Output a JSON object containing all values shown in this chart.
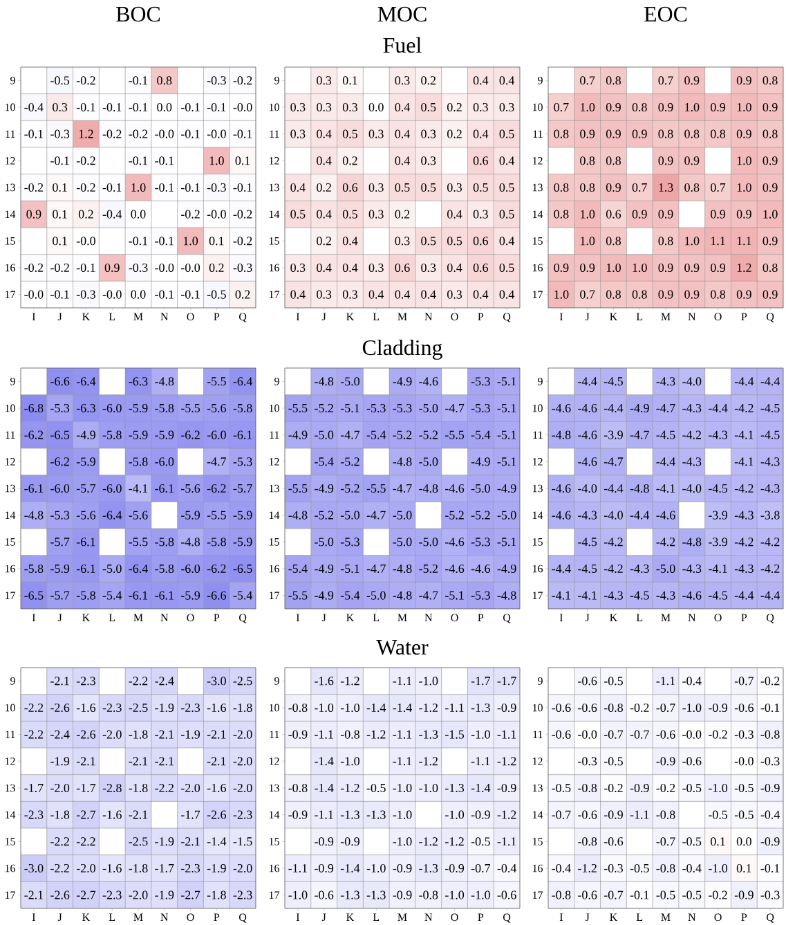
{
  "chart_data": [
    {
      "type": "heatmap",
      "title": "BOC",
      "categories": [
        "I",
        "J",
        "K",
        "L",
        "M",
        "N",
        "O",
        "P",
        "Q"
      ],
      "y_categories": [
        "9",
        "10",
        "11",
        "12",
        "13",
        "14",
        "15",
        "16",
        "17"
      ],
      "cells": [
        [
          null,
          -0.5,
          -0.2,
          null,
          -0.1,
          0.8,
          null,
          -0.3,
          -0.2
        ],
        [
          -0.4,
          0.3,
          -0.1,
          -0.1,
          -0.1,
          0.0,
          -0.1,
          -0.1,
          -0.0
        ],
        [
          -0.1,
          -0.3,
          1.2,
          -0.2,
          -0.2,
          -0.0,
          -0.1,
          -0.0,
          -0.1
        ],
        [
          null,
          -0.1,
          -0.2,
          null,
          -0.1,
          -0.1,
          null,
          1.0,
          0.1
        ],
        [
          -0.2,
          0.1,
          -0.2,
          -0.1,
          1.0,
          -0.1,
          -0.1,
          -0.3,
          -0.1
        ],
        [
          0.9,
          0.1,
          0.2,
          -0.4,
          0.0,
          null,
          -0.2,
          -0.0,
          -0.2
        ],
        [
          null,
          0.1,
          -0.0,
          null,
          -0.1,
          -0.1,
          1.0,
          0.1,
          -0.2
        ],
        [
          -0.2,
          -0.2,
          -0.1,
          0.9,
          -0.3,
          -0.0,
          -0.0,
          0.2,
          -0.3
        ],
        [
          -0.0,
          -0.1,
          -0.3,
          -0.0,
          0.0,
          -0.1,
          -0.1,
          -0.5,
          0.2
        ]
      ],
      "cell_labels": [
        [
          null,
          "-0.5",
          "-0.2",
          null,
          "-0.1",
          "0.8",
          null,
          "-0.3",
          "-0.2"
        ],
        [
          "-0.4",
          "0.3",
          "-0.1",
          "-0.1",
          "-0.1",
          "0.0",
          "-0.1",
          "-0.1",
          "-0.0"
        ],
        [
          "-0.1",
          "-0.3",
          "1.2",
          "-0.2",
          "-0.2",
          "-0.0",
          "-0.1",
          "-0.0",
          "-0.1"
        ],
        [
          null,
          "-0.1",
          "-0.2",
          null,
          "-0.1",
          "-0.1",
          null,
          "1.0",
          "0.1"
        ],
        [
          "-0.2",
          "0.1",
          "-0.2",
          "-0.1",
          "1.0",
          "-0.1",
          "-0.1",
          "-0.3",
          "-0.1"
        ],
        [
          "0.9",
          "0.1",
          "0.2",
          "-0.4",
          "0.0",
          null,
          "-0.2",
          "-0.0",
          "-0.2"
        ],
        [
          null,
          "0.1",
          "-0.0",
          null,
          "-0.1",
          "-0.1",
          "1.0",
          "0.1",
          "-0.2"
        ],
        [
          "-0.2",
          "-0.2",
          "-0.1",
          "0.9",
          "-0.3",
          "-0.0",
          "-0.0",
          "0.2",
          "-0.3"
        ],
        [
          "-0.0",
          "-0.1",
          "-0.3",
          "-0.0",
          "0.0",
          "-0.1",
          "-0.1",
          "-0.5",
          "0.2"
        ]
      ]
    },
    {
      "type": "heatmap",
      "title": "MOC",
      "subtitle": "Fuel",
      "categories": [
        "I",
        "J",
        "K",
        "L",
        "M",
        "N",
        "O",
        "P",
        "Q"
      ],
      "y_categories": [
        "9",
        "10",
        "11",
        "12",
        "13",
        "14",
        "15",
        "16",
        "17"
      ],
      "cells": [
        [
          null,
          0.3,
          0.1,
          null,
          0.3,
          0.2,
          null,
          0.4,
          0.4
        ],
        [
          0.3,
          0.3,
          0.3,
          0.0,
          0.4,
          0.5,
          0.2,
          0.3,
          0.3
        ],
        [
          0.3,
          0.4,
          0.5,
          0.3,
          0.4,
          0.3,
          0.2,
          0.4,
          0.5
        ],
        [
          null,
          0.4,
          0.2,
          null,
          0.4,
          0.3,
          null,
          0.6,
          0.4
        ],
        [
          0.4,
          0.2,
          0.6,
          0.3,
          0.5,
          0.5,
          0.3,
          0.5,
          0.5
        ],
        [
          0.5,
          0.4,
          0.5,
          0.3,
          0.2,
          null,
          0.4,
          0.3,
          0.5
        ],
        [
          null,
          0.2,
          0.4,
          null,
          0.3,
          0.5,
          0.5,
          0.6,
          0.4
        ],
        [
          0.3,
          0.4,
          0.4,
          0.3,
          0.6,
          0.3,
          0.4,
          0.6,
          0.5
        ],
        [
          0.4,
          0.3,
          0.3,
          0.4,
          0.4,
          0.4,
          0.3,
          0.4,
          0.4
        ]
      ],
      "cell_labels": [
        [
          null,
          "0.3",
          "0.1",
          null,
          "0.3",
          "0.2",
          null,
          "0.4",
          "0.4"
        ],
        [
          "0.3",
          "0.3",
          "0.3",
          "0.0",
          "0.4",
          "0.5",
          "0.2",
          "0.3",
          "0.3"
        ],
        [
          "0.3",
          "0.4",
          "0.5",
          "0.3",
          "0.4",
          "0.3",
          "0.2",
          "0.4",
          "0.5"
        ],
        [
          null,
          "0.4",
          "0.2",
          null,
          "0.4",
          "0.3",
          null,
          "0.6",
          "0.4"
        ],
        [
          "0.4",
          "0.2",
          "0.6",
          "0.3",
          "0.5",
          "0.5",
          "0.3",
          "0.5",
          "0.5"
        ],
        [
          "0.5",
          "0.4",
          "0.5",
          "0.3",
          "0.2",
          null,
          "0.4",
          "0.3",
          "0.5"
        ],
        [
          null,
          "0.2",
          "0.4",
          null,
          "0.3",
          "0.5",
          "0.5",
          "0.6",
          "0.4"
        ],
        [
          "0.3",
          "0.4",
          "0.4",
          "0.3",
          "0.6",
          "0.3",
          "0.4",
          "0.6",
          "0.5"
        ],
        [
          "0.4",
          "0.3",
          "0.3",
          "0.4",
          "0.4",
          "0.4",
          "0.3",
          "0.4",
          "0.4"
        ]
      ]
    },
    {
      "type": "heatmap",
      "title": "EOC",
      "categories": [
        "I",
        "J",
        "K",
        "L",
        "M",
        "N",
        "O",
        "P",
        "Q"
      ],
      "y_categories": [
        "9",
        "10",
        "11",
        "12",
        "13",
        "14",
        "15",
        "16",
        "17"
      ],
      "cells": [
        [
          null,
          0.7,
          0.8,
          null,
          0.7,
          0.9,
          null,
          0.9,
          0.8
        ],
        [
          0.7,
          1.0,
          0.9,
          0.8,
          0.9,
          1.0,
          0.9,
          1.0,
          0.9
        ],
        [
          0.8,
          0.9,
          0.9,
          0.9,
          0.8,
          0.8,
          0.8,
          0.9,
          0.8
        ],
        [
          null,
          0.8,
          0.8,
          null,
          0.9,
          0.9,
          null,
          1.0,
          0.9
        ],
        [
          0.8,
          0.8,
          0.9,
          0.7,
          1.3,
          0.8,
          0.7,
          1.0,
          0.9
        ],
        [
          0.8,
          1.0,
          0.6,
          0.9,
          0.9,
          null,
          0.9,
          0.9,
          1.0
        ],
        [
          null,
          1.0,
          0.8,
          null,
          0.8,
          1.0,
          1.1,
          1.1,
          0.9
        ],
        [
          0.9,
          0.9,
          1.0,
          1.0,
          0.9,
          0.9,
          0.9,
          1.2,
          0.8
        ],
        [
          1.0,
          0.7,
          0.8,
          0.8,
          0.9,
          0.9,
          0.8,
          0.9,
          0.9
        ]
      ],
      "cell_labels": [
        [
          null,
          "0.7",
          "0.8",
          null,
          "0.7",
          "0.9",
          null,
          "0.9",
          "0.8"
        ],
        [
          "0.7",
          "1.0",
          "0.9",
          "0.8",
          "0.9",
          "1.0",
          "0.9",
          "1.0",
          "0.9"
        ],
        [
          "0.8",
          "0.9",
          "0.9",
          "0.9",
          "0.8",
          "0.8",
          "0.8",
          "0.9",
          "0.8"
        ],
        [
          null,
          "0.8",
          "0.8",
          null,
          "0.9",
          "0.9",
          null,
          "1.0",
          "0.9"
        ],
        [
          "0.8",
          "0.8",
          "0.9",
          "0.7",
          "1.3",
          "0.8",
          "0.7",
          "1.0",
          "0.9"
        ],
        [
          "0.8",
          "1.0",
          "0.6",
          "0.9",
          "0.9",
          null,
          "0.9",
          "0.9",
          "1.0"
        ],
        [
          null,
          "1.0",
          "0.8",
          null,
          "0.8",
          "1.0",
          "1.1",
          "1.1",
          "0.9"
        ],
        [
          "0.9",
          "0.9",
          "1.0",
          "1.0",
          "0.9",
          "0.9",
          "0.9",
          "1.2",
          "0.8"
        ],
        [
          "1.0",
          "0.7",
          "0.8",
          "0.8",
          "0.9",
          "0.9",
          "0.8",
          "0.9",
          "0.9"
        ]
      ]
    },
    {
      "type": "heatmap",
      "categories": [
        "I",
        "J",
        "K",
        "L",
        "M",
        "N",
        "O",
        "P",
        "Q"
      ],
      "y_categories": [
        "9",
        "10",
        "11",
        "12",
        "13",
        "14",
        "15",
        "16",
        "17"
      ],
      "cells": [
        [
          null,
          -6.6,
          -6.4,
          null,
          -6.3,
          -4.8,
          null,
          -5.5,
          -6.4
        ],
        [
          -6.8,
          -5.3,
          -6.3,
          -6.0,
          -5.9,
          -5.8,
          -5.5,
          -5.6,
          -5.8
        ],
        [
          -6.2,
          -6.5,
          -4.9,
          -5.8,
          -5.9,
          -5.9,
          -6.2,
          -6.0,
          -6.1
        ],
        [
          null,
          -6.2,
          -5.9,
          null,
          -5.8,
          -6.0,
          null,
          -4.7,
          -5.3
        ],
        [
          -6.1,
          -6.0,
          -5.7,
          -6.0,
          -4.1,
          -6.1,
          -5.6,
          -6.2,
          -5.7
        ],
        [
          -4.8,
          -5.3,
          -5.6,
          -6.4,
          -5.6,
          null,
          -5.9,
          -5.5,
          -5.9
        ],
        [
          null,
          -5.7,
          -6.1,
          null,
          -5.5,
          -5.8,
          -4.8,
          -5.8,
          -5.9
        ],
        [
          -5.8,
          -5.9,
          -6.1,
          -5.0,
          -6.4,
          -5.8,
          -6.0,
          -6.2,
          -6.5
        ],
        [
          -6.5,
          -5.7,
          -5.8,
          -5.4,
          -6.1,
          -6.1,
          -5.9,
          -6.6,
          -5.4
        ]
      ],
      "cell_labels": [
        [
          null,
          "-6.6",
          "-6.4",
          null,
          "-6.3",
          "-4.8",
          null,
          "-5.5",
          "-6.4"
        ],
        [
          "-6.8",
          "-5.3",
          "-6.3",
          "-6.0",
          "-5.9",
          "-5.8",
          "-5.5",
          "-5.6",
          "-5.8"
        ],
        [
          "-6.2",
          "-6.5",
          "-4.9",
          "-5.8",
          "-5.9",
          "-5.9",
          "-6.2",
          "-6.0",
          "-6.1"
        ],
        [
          null,
          "-6.2",
          "-5.9",
          null,
          "-5.8",
          "-6.0",
          null,
          "-4.7",
          "-5.3"
        ],
        [
          "-6.1",
          "-6.0",
          "-5.7",
          "-6.0",
          "-4.1",
          "-6.1",
          "-5.6",
          "-6.2",
          "-5.7"
        ],
        [
          "-4.8",
          "-5.3",
          "-5.6",
          "-6.4",
          "-5.6",
          null,
          "-5.9",
          "-5.5",
          "-5.9"
        ],
        [
          null,
          "-5.7",
          "-6.1",
          null,
          "-5.5",
          "-5.8",
          "-4.8",
          "-5.8",
          "-5.9"
        ],
        [
          "-5.8",
          "-5.9",
          "-6.1",
          "-5.0",
          "-6.4",
          "-5.8",
          "-6.0",
          "-6.2",
          "-6.5"
        ],
        [
          "-6.5",
          "-5.7",
          "-5.8",
          "-5.4",
          "-6.1",
          "-6.1",
          "-5.9",
          "-6.6",
          "-5.4"
        ]
      ]
    },
    {
      "type": "heatmap",
      "title": "Cladding",
      "categories": [
        "I",
        "J",
        "K",
        "L",
        "M",
        "N",
        "O",
        "P",
        "Q"
      ],
      "y_categories": [
        "9",
        "10",
        "11",
        "12",
        "13",
        "14",
        "15",
        "16",
        "17"
      ],
      "cells": [
        [
          null,
          -4.8,
          -5.0,
          null,
          -4.9,
          -4.6,
          null,
          -5.3,
          -5.1
        ],
        [
          -5.5,
          -5.2,
          -5.1,
          -5.3,
          -5.3,
          -5.0,
          -4.7,
          -5.3,
          -5.1
        ],
        [
          -4.9,
          -5.0,
          -4.7,
          -5.4,
          -5.2,
          -5.2,
          -5.5,
          -5.4,
          -5.1
        ],
        [
          null,
          -5.4,
          -5.2,
          null,
          -4.8,
          -5.0,
          null,
          -4.9,
          -5.1
        ],
        [
          -5.5,
          -4.9,
          -5.2,
          -5.5,
          -4.7,
          -4.8,
          -4.6,
          -5.0,
          -4.9
        ],
        [
          -4.8,
          -5.2,
          -5.0,
          -4.7,
          -5.0,
          null,
          -5.2,
          -5.2,
          -5.0
        ],
        [
          null,
          -5.0,
          -5.3,
          null,
          -5.0,
          -5.0,
          -4.6,
          -5.3,
          -5.1
        ],
        [
          -5.4,
          -4.9,
          -5.1,
          -4.7,
          -4.8,
          -5.2,
          -4.6,
          -4.6,
          -4.9
        ],
        [
          -5.5,
          -4.9,
          -5.4,
          -5.0,
          -4.8,
          -4.7,
          -5.1,
          -5.3,
          -4.8
        ]
      ],
      "cell_labels": [
        [
          null,
          "-4.8",
          "-5.0",
          null,
          "-4.9",
          "-4.6",
          null,
          "-5.3",
          "-5.1"
        ],
        [
          "-5.5",
          "-5.2",
          "-5.1",
          "-5.3",
          "-5.3",
          "-5.0",
          "-4.7",
          "-5.3",
          "-5.1"
        ],
        [
          "-4.9",
          "-5.0",
          "-4.7",
          "-5.4",
          "-5.2",
          "-5.2",
          "-5.5",
          "-5.4",
          "-5.1"
        ],
        [
          null,
          "-5.4",
          "-5.2",
          null,
          "-4.8",
          "-5.0",
          null,
          "-4.9",
          "-5.1"
        ],
        [
          "-5.5",
          "-4.9",
          "-5.2",
          "-5.5",
          "-4.7",
          "-4.8",
          "-4.6",
          "-5.0",
          "-4.9"
        ],
        [
          "-4.8",
          "-5.2",
          "-5.0",
          "-4.7",
          "-5.0",
          null,
          "-5.2",
          "-5.2",
          "-5.0"
        ],
        [
          null,
          "-5.0",
          "-5.3",
          null,
          "-5.0",
          "-5.0",
          "-4.6",
          "-5.3",
          "-5.1"
        ],
        [
          "-5.4",
          "-4.9",
          "-5.1",
          "-4.7",
          "-4.8",
          "-5.2",
          "-4.6",
          "-4.6",
          "-4.9"
        ],
        [
          "-5.5",
          "-4.9",
          "-5.4",
          "-5.0",
          "-4.8",
          "-4.7",
          "-5.1",
          "-5.3",
          "-4.8"
        ]
      ]
    },
    {
      "type": "heatmap",
      "categories": [
        "I",
        "J",
        "K",
        "L",
        "M",
        "N",
        "O",
        "P",
        "Q"
      ],
      "y_categories": [
        "9",
        "10",
        "11",
        "12",
        "13",
        "14",
        "15",
        "16",
        "17"
      ],
      "cells": [
        [
          null,
          -4.4,
          -4.5,
          null,
          -4.3,
          -4.0,
          null,
          -4.4,
          -4.4
        ],
        [
          -4.6,
          -4.6,
          -4.4,
          -4.9,
          -4.7,
          -4.3,
          -4.4,
          -4.2,
          -4.5
        ],
        [
          -4.8,
          -4.6,
          -3.9,
          -4.7,
          -4.5,
          -4.2,
          -4.3,
          -4.1,
          -4.5
        ],
        [
          null,
          -4.6,
          -4.7,
          null,
          -4.4,
          -4.3,
          null,
          -4.1,
          -4.3
        ],
        [
          -4.6,
          -4.0,
          -4.4,
          -4.8,
          -4.1,
          -4.0,
          -4.5,
          -4.2,
          -4.3
        ],
        [
          -4.6,
          -4.3,
          -4.0,
          -4.4,
          -4.6,
          null,
          -3.9,
          -4.3,
          -3.8
        ],
        [
          null,
          -4.5,
          -4.2,
          null,
          -4.2,
          -4.8,
          -3.9,
          -4.2,
          -4.2
        ],
        [
          -4.4,
          -4.5,
          -4.2,
          -4.3,
          -5.0,
          -4.3,
          -4.1,
          -4.3,
          -4.2
        ],
        [
          -4.1,
          -4.1,
          -4.3,
          -4.5,
          -4.3,
          -4.6,
          -4.5,
          -4.4,
          -4.4
        ]
      ],
      "cell_labels": [
        [
          null,
          "-4.4",
          "-4.5",
          null,
          "-4.3",
          "-4.0",
          null,
          "-4.4",
          "-4.4"
        ],
        [
          "-4.6",
          "-4.6",
          "-4.4",
          "-4.9",
          "-4.7",
          "-4.3",
          "-4.4",
          "-4.2",
          "-4.5"
        ],
        [
          "-4.8",
          "-4.6",
          "-3.9",
          "-4.7",
          "-4.5",
          "-4.2",
          "-4.3",
          "-4.1",
          "-4.5"
        ],
        [
          null,
          "-4.6",
          "-4.7",
          null,
          "-4.4",
          "-4.3",
          null,
          "-4.1",
          "-4.3"
        ],
        [
          "-4.6",
          "-4.0",
          "-4.4",
          "-4.8",
          "-4.1",
          "-4.0",
          "-4.5",
          "-4.2",
          "-4.3"
        ],
        [
          "-4.6",
          "-4.3",
          "-4.0",
          "-4.4",
          "-4.6",
          null,
          "-3.9",
          "-4.3",
          "-3.8"
        ],
        [
          null,
          "-4.5",
          "-4.2",
          null,
          "-4.2",
          "-4.8",
          "-3.9",
          "-4.2",
          "-4.2"
        ],
        [
          "-4.4",
          "-4.5",
          "-4.2",
          "-4.3",
          "-5.0",
          "-4.3",
          "-4.1",
          "-4.3",
          "-4.2"
        ],
        [
          "-4.1",
          "-4.1",
          "-4.3",
          "-4.5",
          "-4.3",
          "-4.6",
          "-4.5",
          "-4.4",
          "-4.4"
        ]
      ]
    },
    {
      "type": "heatmap",
      "categories": [
        "I",
        "J",
        "K",
        "L",
        "M",
        "N",
        "O",
        "P",
        "Q"
      ],
      "y_categories": [
        "9",
        "10",
        "11",
        "12",
        "13",
        "14",
        "15",
        "16",
        "17"
      ],
      "cells": [
        [
          null,
          -2.1,
          -2.3,
          null,
          -2.2,
          -2.4,
          null,
          -3.0,
          -2.5
        ],
        [
          -2.2,
          -2.6,
          -1.6,
          -2.3,
          -2.5,
          -1.9,
          -2.3,
          -1.6,
          -1.8
        ],
        [
          -2.2,
          -2.4,
          -2.6,
          -2.0,
          -1.8,
          -2.1,
          -1.9,
          -2.1,
          -2.0
        ],
        [
          null,
          -1.9,
          -2.1,
          null,
          -2.1,
          -2.1,
          null,
          -2.1,
          -2.0
        ],
        [
          -1.7,
          -2.0,
          -1.7,
          -2.8,
          -1.8,
          -2.2,
          -2.0,
          -1.6,
          -2.0
        ],
        [
          -2.3,
          -1.8,
          -2.7,
          -1.6,
          -2.1,
          null,
          -1.7,
          -2.6,
          -2.3
        ],
        [
          null,
          -2.2,
          -2.2,
          null,
          -2.5,
          -1.9,
          -2.1,
          -1.4,
          -1.5
        ],
        [
          -3.0,
          -2.2,
          -2.0,
          -1.6,
          -1.8,
          -1.7,
          -2.3,
          -1.9,
          -2.0
        ],
        [
          -2.1,
          -2.6,
          -2.7,
          -2.3,
          -2.0,
          -1.9,
          -2.7,
          -1.8,
          -2.3
        ]
      ],
      "cell_labels": [
        [
          null,
          "-2.1",
          "-2.3",
          null,
          "-2.2",
          "-2.4",
          null,
          "-3.0",
          "-2.5"
        ],
        [
          "-2.2",
          "-2.6",
          "-1.6",
          "-2.3",
          "-2.5",
          "-1.9",
          "-2.3",
          "-1.6",
          "-1.8"
        ],
        [
          "-2.2",
          "-2.4",
          "-2.6",
          "-2.0",
          "-1.8",
          "-2.1",
          "-1.9",
          "-2.1",
          "-2.0"
        ],
        [
          null,
          "-1.9",
          "-2.1",
          null,
          "-2.1",
          "-2.1",
          null,
          "-2.1",
          "-2.0"
        ],
        [
          "-1.7",
          "-2.0",
          "-1.7",
          "-2.8",
          "-1.8",
          "-2.2",
          "-2.0",
          "-1.6",
          "-2.0"
        ],
        [
          "-2.3",
          "-1.8",
          "-2.7",
          "-1.6",
          "-2.1",
          null,
          "-1.7",
          "-2.6",
          "-2.3"
        ],
        [
          null,
          "-2.2",
          "-2.2",
          null,
          "-2.5",
          "-1.9",
          "-2.1",
          "-1.4",
          "-1.5"
        ],
        [
          "-3.0",
          "-2.2",
          "-2.0",
          "-1.6",
          "-1.8",
          "-1.7",
          "-2.3",
          "-1.9",
          "-2.0"
        ],
        [
          "-2.1",
          "-2.6",
          "-2.7",
          "-2.3",
          "-2.0",
          "-1.9",
          "-2.7",
          "-1.8",
          "-2.3"
        ]
      ]
    },
    {
      "type": "heatmap",
      "title": "Water",
      "categories": [
        "I",
        "J",
        "K",
        "L",
        "M",
        "N",
        "O",
        "P",
        "Q"
      ],
      "y_categories": [
        "9",
        "10",
        "11",
        "12",
        "13",
        "14",
        "15",
        "16",
        "17"
      ],
      "cells": [
        [
          null,
          -1.6,
          -1.2,
          null,
          -1.1,
          -1.0,
          null,
          -1.7,
          -1.7
        ],
        [
          -0.8,
          -1.0,
          -1.0,
          -1.4,
          -1.4,
          -1.2,
          -1.1,
          -1.3,
          -0.9
        ],
        [
          -0.9,
          -1.1,
          -0.8,
          -1.2,
          -1.1,
          -1.3,
          -1.5,
          -1.0,
          -1.1
        ],
        [
          null,
          -1.4,
          -1.0,
          null,
          -1.1,
          -1.2,
          null,
          -1.1,
          -1.2
        ],
        [
          -0.8,
          -1.4,
          -1.2,
          -0.5,
          -1.0,
          -1.0,
          -1.3,
          -1.4,
          -0.9
        ],
        [
          -0.9,
          -1.1,
          -1.3,
          -1.3,
          -1.0,
          null,
          -1.0,
          -0.9,
          -1.2
        ],
        [
          null,
          -0.9,
          -0.9,
          null,
          -1.0,
          -1.2,
          -1.2,
          -0.5,
          -1.1
        ],
        [
          -1.1,
          -0.9,
          -1.4,
          -1.0,
          -0.9,
          -1.3,
          -0.9,
          -0.7,
          -0.4
        ],
        [
          -1.0,
          -0.6,
          -1.3,
          -1.3,
          -0.9,
          -0.8,
          -1.0,
          -1.0,
          -0.6
        ]
      ],
      "cell_labels": [
        [
          null,
          "-1.6",
          "-1.2",
          null,
          "-1.1",
          "-1.0",
          null,
          "-1.7",
          "-1.7"
        ],
        [
          "-0.8",
          "-1.0",
          "-1.0",
          "-1.4",
          "-1.4",
          "-1.2",
          "-1.1",
          "-1.3",
          "-0.9"
        ],
        [
          "-0.9",
          "-1.1",
          "-0.8",
          "-1.2",
          "-1.1",
          "-1.3",
          "-1.5",
          "-1.0",
          "-1.1"
        ],
        [
          null,
          "-1.4",
          "-1.0",
          null,
          "-1.1",
          "-1.2",
          null,
          "-1.1",
          "-1.2"
        ],
        [
          "-0.8",
          "-1.4",
          "-1.2",
          "-0.5",
          "-1.0",
          "-1.0",
          "-1.3",
          "-1.4",
          "-0.9"
        ],
        [
          "-0.9",
          "-1.1",
          "-1.3",
          "-1.3",
          "-1.0",
          null,
          "-1.0",
          "-0.9",
          "-1.2"
        ],
        [
          null,
          "-0.9",
          "-0.9",
          null,
          "-1.0",
          "-1.2",
          "-1.2",
          "-0.5",
          "-1.1"
        ],
        [
          "-1.1",
          "-0.9",
          "-1.4",
          "-1.0",
          "-0.9",
          "-1.3",
          "-0.9",
          "-0.7",
          "-0.4"
        ],
        [
          "-1.0",
          "-0.6",
          "-1.3",
          "-1.3",
          "-0.9",
          "-0.8",
          "-1.0",
          "-1.0",
          "-0.6"
        ]
      ]
    },
    {
      "type": "heatmap",
      "categories": [
        "I",
        "J",
        "K",
        "L",
        "M",
        "N",
        "O",
        "P",
        "Q"
      ],
      "y_categories": [
        "9",
        "10",
        "11",
        "12",
        "13",
        "14",
        "15",
        "16",
        "17"
      ],
      "cells": [
        [
          null,
          -0.6,
          -0.5,
          null,
          -1.1,
          -0.4,
          null,
          -0.7,
          -0.2
        ],
        [
          -0.6,
          -0.6,
          -0.8,
          -0.2,
          -0.7,
          -1.0,
          -0.9,
          -0.6,
          -0.1
        ],
        [
          -0.6,
          -0.0,
          -0.7,
          -0.7,
          -0.6,
          -0.0,
          -0.2,
          -0.3,
          -0.8
        ],
        [
          null,
          -0.3,
          -0.5,
          null,
          -0.9,
          -0.6,
          null,
          -0.0,
          -0.3
        ],
        [
          -0.5,
          -0.8,
          -0.2,
          -0.9,
          -0.2,
          -0.5,
          -1.0,
          -0.5,
          -0.9
        ],
        [
          -0.7,
          -0.6,
          -0.9,
          -1.1,
          -0.8,
          null,
          -0.5,
          -0.5,
          -0.4
        ],
        [
          null,
          -0.8,
          -0.6,
          null,
          -0.7,
          -0.5,
          0.1,
          0.0,
          -0.9
        ],
        [
          -0.4,
          -1.2,
          -0.3,
          -0.5,
          -0.8,
          -0.4,
          -1.0,
          0.1,
          -0.1
        ],
        [
          -0.8,
          -0.6,
          -0.7,
          -0.1,
          -0.5,
          -0.5,
          -0.2,
          -0.9,
          -0.3
        ]
      ],
      "cell_labels": [
        [
          null,
          "-0.6",
          "-0.5",
          null,
          "-1.1",
          "-0.4",
          null,
          "-0.7",
          "-0.2"
        ],
        [
          "-0.6",
          "-0.6",
          "-0.8",
          "-0.2",
          "-0.7",
          "-1.0",
          "-0.9",
          "-0.6",
          "-0.1"
        ],
        [
          "-0.6",
          "-0.0",
          "-0.7",
          "-0.7",
          "-0.6",
          "-0.0",
          "-0.2",
          "-0.3",
          "-0.8"
        ],
        [
          null,
          "-0.3",
          "-0.5",
          null,
          "-0.9",
          "-0.6",
          null,
          "-0.0",
          "-0.3"
        ],
        [
          "-0.5",
          "-0.8",
          "-0.2",
          "-0.9",
          "-0.2",
          "-0.5",
          "-1.0",
          "-0.5",
          "-0.9"
        ],
        [
          "-0.7",
          "-0.6",
          "-0.9",
          "-1.1",
          "-0.8",
          null,
          "-0.5",
          "-0.5",
          "-0.4"
        ],
        [
          null,
          "-0.8",
          "-0.6",
          null,
          "-0.7",
          "-0.5",
          "0.1",
          "0.0",
          "-0.9"
        ],
        [
          "-0.4",
          "-1.2",
          "-0.3",
          "-0.5",
          "-0.8",
          "-0.4",
          "-1.0",
          "0.1",
          "-0.1"
        ],
        [
          "-0.8",
          "-0.6",
          "-0.7",
          "-0.1",
          "-0.5",
          "-0.5",
          "-0.2",
          "-0.9",
          "-0.3"
        ]
      ]
    }
  ]
}
